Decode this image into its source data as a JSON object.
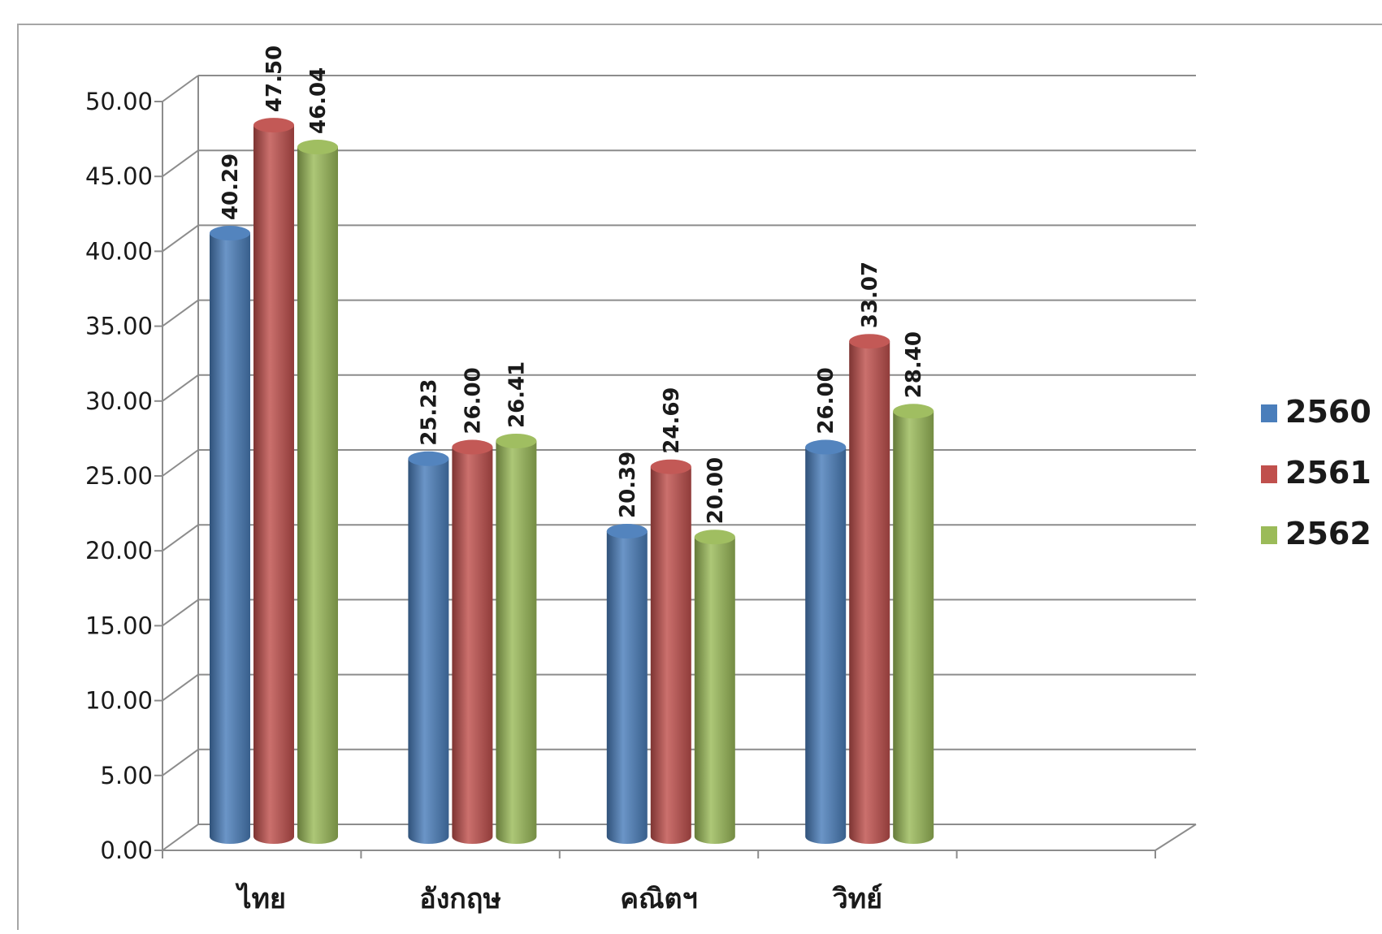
{
  "chart_data": {
    "type": "bar",
    "categories": [
      "ไทย",
      "อังกฤษ",
      "คณิตฯ",
      "วิทย์"
    ],
    "series": [
      {
        "name": "2560",
        "color": "#4a7ebb",
        "values": [
          40.29,
          25.23,
          20.39,
          26.0
        ]
      },
      {
        "name": "2561",
        "color": "#c0504d",
        "values": [
          47.5,
          26.0,
          24.69,
          33.07
        ]
      },
      {
        "name": "2562",
        "color": "#9bbb59",
        "values": [
          46.04,
          26.41,
          20.0,
          28.4
        ]
      }
    ],
    "data_labels": [
      [
        "40.29",
        "25.23",
        "20.39",
        "26.00"
      ],
      [
        "47.50",
        "26.00",
        "24.69",
        "33.07"
      ],
      [
        "46.04",
        "26.41",
        "20.00",
        "28.40"
      ]
    ],
    "y_ticks": [
      "0.00",
      "5.00",
      "10.00",
      "15.00",
      "20.00",
      "25.00",
      "30.00",
      "35.00",
      "40.00",
      "45.00",
      "50.00"
    ],
    "ylim": [
      0,
      50
    ],
    "grid": true,
    "legend_position": "right",
    "title": "",
    "xlabel": "",
    "ylabel": ""
  }
}
